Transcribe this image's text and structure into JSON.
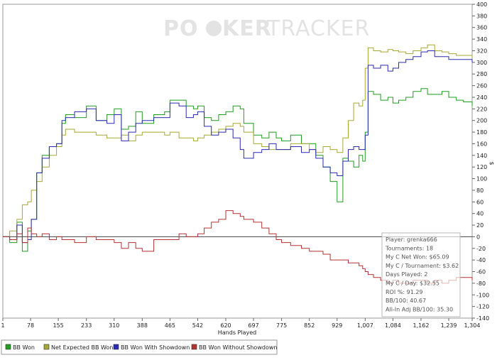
{
  "watermark": {
    "left": "PO",
    "mid": "KER",
    "right": "TRACKER"
  },
  "chart_data": {
    "type": "line",
    "title": "",
    "xlabel": "Hands Played",
    "ylabel": "$",
    "xlim": [
      1,
      1304
    ],
    "ylim": [
      -140,
      400
    ],
    "x_ticks": [
      "1",
      "78",
      "155",
      "233",
      "310",
      "388",
      "465",
      "542",
      "620",
      "697",
      "775",
      "852",
      "929",
      "1,007",
      "1,084",
      "1,162",
      "1,239",
      "1,304"
    ],
    "x_tick_values": [
      1,
      78,
      155,
      233,
      310,
      388,
      465,
      542,
      620,
      697,
      775,
      852,
      929,
      1007,
      1084,
      1162,
      1239,
      1304
    ],
    "y_ticks": [
      -140,
      -120,
      -100,
      -80,
      -60,
      -40,
      -20,
      0,
      20,
      40,
      60,
      80,
      100,
      120,
      140,
      160,
      180,
      200,
      220,
      240,
      260,
      280,
      300,
      320,
      340,
      360,
      380,
      400
    ],
    "grid": false,
    "legend_position": "bottom",
    "series": [
      {
        "name": "BB Won",
        "color": "#1f9e1f",
        "x": [
          1,
          20,
          40,
          55,
          70,
          80,
          95,
          110,
          130,
          150,
          165,
          175,
          200,
          233,
          260,
          290,
          310,
          330,
          350,
          370,
          388,
          420,
          450,
          465,
          490,
          510,
          530,
          542,
          560,
          580,
          600,
          620,
          640,
          660,
          670,
          697,
          720,
          740,
          760,
          775,
          800,
          830,
          852,
          870,
          890,
          910,
          929,
          945,
          960,
          975,
          990,
          1000,
          1007,
          1015,
          1030,
          1050,
          1070,
          1084,
          1100,
          1120,
          1140,
          1162,
          1180,
          1200,
          1220,
          1239,
          1260,
          1280,
          1304
        ],
        "y": [
          0,
          -10,
          25,
          -25,
          10,
          30,
          110,
          140,
          155,
          160,
          195,
          210,
          205,
          225,
          200,
          210,
          220,
          185,
          190,
          215,
          195,
          210,
          215,
          235,
          235,
          225,
          220,
          225,
          205,
          200,
          210,
          215,
          225,
          220,
          195,
          175,
          170,
          180,
          170,
          165,
          175,
          160,
          160,
          140,
          120,
          95,
          60,
          135,
          130,
          120,
          140,
          130,
          180,
          250,
          245,
          235,
          240,
          230,
          235,
          240,
          250,
          255,
          245,
          245,
          250,
          240,
          235,
          232,
          225
        ]
      },
      {
        "name": "Net Expected BB Won",
        "color": "#a7a835",
        "x": [
          1,
          20,
          40,
          55,
          70,
          80,
          95,
          110,
          130,
          150,
          165,
          175,
          200,
          233,
          260,
          290,
          310,
          330,
          350,
          370,
          388,
          420,
          450,
          465,
          490,
          510,
          530,
          542,
          560,
          580,
          600,
          620,
          640,
          660,
          670,
          697,
          720,
          740,
          760,
          775,
          800,
          830,
          852,
          870,
          890,
          910,
          929,
          945,
          960,
          975,
          990,
          1000,
          1007,
          1015,
          1030,
          1050,
          1070,
          1084,
          1100,
          1120,
          1140,
          1162,
          1180,
          1200,
          1220,
          1239,
          1260,
          1280,
          1304
        ],
        "y": [
          0,
          10,
          30,
          55,
          60,
          80,
          95,
          120,
          140,
          155,
          175,
          185,
          180,
          180,
          175,
          170,
          170,
          175,
          165,
          175,
          180,
          180,
          175,
          180,
          170,
          170,
          165,
          170,
          175,
          180,
          185,
          190,
          195,
          190,
          180,
          160,
          155,
          150,
          150,
          150,
          160,
          160,
          150,
          145,
          155,
          150,
          145,
          170,
          200,
          230,
          225,
          235,
          290,
          325,
          320,
          318,
          322,
          320,
          318,
          315,
          320,
          325,
          330,
          320,
          318,
          315,
          312,
          312,
          308
        ]
      },
      {
        "name": "BB Won With Showdown",
        "color": "#2b2bb3",
        "x": [
          1,
          20,
          40,
          55,
          70,
          80,
          95,
          110,
          130,
          150,
          165,
          175,
          200,
          233,
          260,
          290,
          310,
          330,
          350,
          370,
          388,
          420,
          450,
          465,
          490,
          510,
          530,
          542,
          560,
          580,
          600,
          620,
          640,
          660,
          670,
          697,
          720,
          740,
          760,
          775,
          800,
          830,
          852,
          870,
          890,
          910,
          929,
          945,
          960,
          975,
          990,
          1000,
          1007,
          1015,
          1030,
          1050,
          1070,
          1084,
          1100,
          1120,
          1140,
          1162,
          1180,
          1200,
          1220,
          1239,
          1260,
          1280,
          1304
        ],
        "y": [
          0,
          -5,
          20,
          -10,
          -5,
          30,
          110,
          135,
          155,
          160,
          200,
          205,
          215,
          220,
          200,
          195,
          210,
          165,
          180,
          195,
          200,
          205,
          205,
          230,
          225,
          205,
          210,
          215,
          190,
          175,
          180,
          185,
          170,
          150,
          135,
          145,
          150,
          160,
          150,
          150,
          155,
          145,
          150,
          135,
          120,
          110,
          105,
          130,
          150,
          155,
          150,
          150,
          175,
          295,
          290,
          295,
          285,
          290,
          300,
          305,
          310,
          318,
          320,
          310,
          310,
          305,
          305,
          305,
          300
        ]
      },
      {
        "name": "BB Won Without Showdown",
        "color": "#b33232",
        "x": [
          1,
          20,
          40,
          55,
          70,
          80,
          95,
          110,
          130,
          150,
          165,
          175,
          200,
          233,
          260,
          290,
          310,
          330,
          350,
          370,
          388,
          420,
          450,
          465,
          490,
          510,
          530,
          542,
          560,
          580,
          600,
          620,
          640,
          660,
          670,
          697,
          720,
          740,
          760,
          775,
          800,
          830,
          852,
          870,
          890,
          910,
          929,
          945,
          960,
          975,
          990,
          1000,
          1007,
          1015,
          1030,
          1050,
          1070,
          1084,
          1100,
          1120,
          1140,
          1162,
          1180,
          1200,
          1220,
          1239,
          1260,
          1280,
          1304
        ],
        "y": [
          0,
          -5,
          5,
          -10,
          15,
          5,
          0,
          5,
          -5,
          0,
          -5,
          -5,
          -10,
          0,
          -5,
          -5,
          -10,
          -20,
          -10,
          -20,
          -25,
          -5,
          -5,
          -5,
          5,
          0,
          0,
          5,
          15,
          25,
          30,
          45,
          40,
          35,
          30,
          25,
          15,
          5,
          -5,
          -10,
          -15,
          -20,
          -25,
          -25,
          -30,
          -40,
          -40,
          -40,
          -45,
          -45,
          -50,
          -55,
          -60,
          -65,
          -70,
          -75,
          -80,
          -75,
          -80,
          -80,
          -75,
          -75,
          -80,
          -75,
          -80,
          -75,
          -70,
          -70,
          -75
        ]
      }
    ]
  },
  "info_box": {
    "lines": [
      "Player: grenka666",
      "Tournaments: 18",
      "My C Net Won: $65.09",
      "My C / Tournament: $3.62",
      "Days Played: 2",
      "My C / Day: $32.55",
      "ROI %: 91.29",
      "BB/100: 40.67",
      "All-In Adj BB/100: 35.30"
    ]
  }
}
